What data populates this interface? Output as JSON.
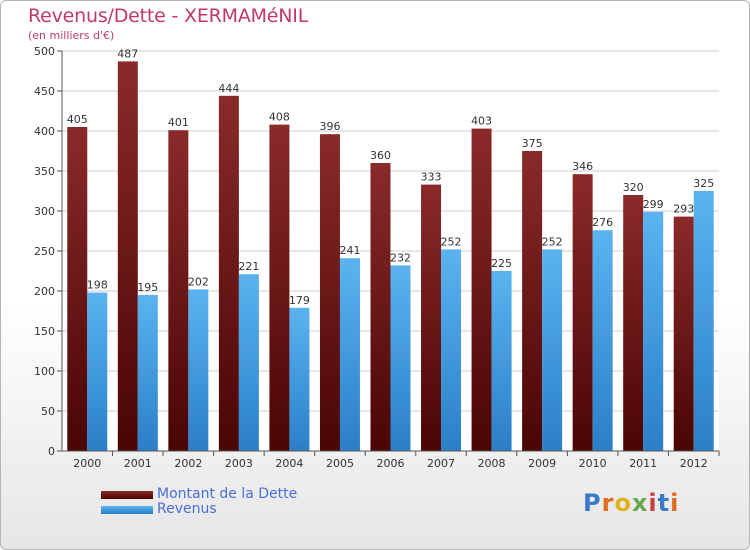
{
  "header": {
    "title": "Revenus/Dette - XERMAMéNIL",
    "subtitle": "(en milliers d'€)"
  },
  "legend": {
    "items": [
      {
        "label": "Montant de la Dette",
        "color": "#6b0f0f"
      },
      {
        "label": "Revenus",
        "color": "#4aa3e8"
      }
    ]
  },
  "logo": {
    "text": "Proxiti",
    "colors": [
      "#3a78c9",
      "#e26a1e",
      "#e0b21f",
      "#6aa84f",
      "#cc3f3f",
      "#3a78c9",
      "#e26a1e"
    ]
  },
  "chart_data": {
    "type": "bar",
    "title": "Revenus/Dette - XERMAMéNIL",
    "subtitle": "(en milliers d'€)",
    "xlabel": "",
    "ylabel": "",
    "ylim": [
      0,
      500
    ],
    "yticks": [
      0,
      50,
      100,
      150,
      200,
      250,
      300,
      350,
      400,
      450,
      500
    ],
    "grid": true,
    "legend_position": "bottom-left",
    "categories": [
      "2000",
      "2001",
      "2002",
      "2003",
      "2004",
      "2005",
      "2006",
      "2007",
      "2008",
      "2009",
      "2010",
      "2011",
      "2012"
    ],
    "series": [
      {
        "name": "Montant de la Dette",
        "color": "#7a1a1a",
        "values": [
          405,
          487,
          401,
          444,
          408,
          396,
          360,
          333,
          403,
          375,
          346,
          320,
          293
        ]
      },
      {
        "name": "Revenus",
        "color": "#4aa3e8",
        "values": [
          198,
          195,
          202,
          221,
          179,
          241,
          232,
          252,
          225,
          252,
          276,
          299,
          325
        ]
      }
    ]
  }
}
